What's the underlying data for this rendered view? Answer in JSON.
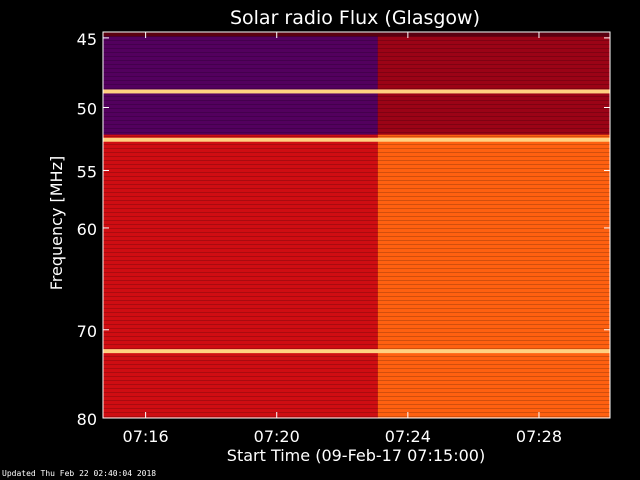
{
  "chart_data": {
    "type": "heatmap",
    "title": "Solar radio Flux (Glasgow)",
    "xlabel": "Start Time (09-Feb-17 07:15:00)",
    "ylabel": "Frequency [MHz]",
    "x_unit": "time",
    "x_range": [
      "07:14:42",
      "07:30:10"
    ],
    "x_ticks": [
      "07:16",
      "07:20",
      "07:24",
      "07:28"
    ],
    "y_range": [
      44.6,
      80.0
    ],
    "y_ticks": [
      45,
      50,
      55,
      60,
      70,
      80
    ],
    "y_scale": "log",
    "colormap": [
      "#0000c8",
      "#8a0018",
      "#e01010",
      "#ff6010",
      "#ffd080"
    ],
    "regions": [
      {
        "t_start": "07:14:42",
        "t_end": "07:23:05",
        "f_low": 44.9,
        "f_high": 52.1,
        "level": 0.15
      },
      {
        "t_start": "07:23:05",
        "t_end": "07:30:10",
        "f_low": 44.9,
        "f_high": 52.1,
        "level": 0.3
      },
      {
        "t_start": "07:14:42",
        "t_end": "07:23:05",
        "f_low": 52.1,
        "f_high": 80.0,
        "level": 0.45
      },
      {
        "t_start": "07:23:05",
        "t_end": "07:30:10",
        "f_low": 52.1,
        "f_high": 80.0,
        "level": 0.75
      }
    ],
    "bright_lines_mhz": [
      48.8,
      52.5,
      72.3
    ]
  },
  "footer": {
    "updated": "Updated Thu Feb 22 02:40:04 2018"
  }
}
